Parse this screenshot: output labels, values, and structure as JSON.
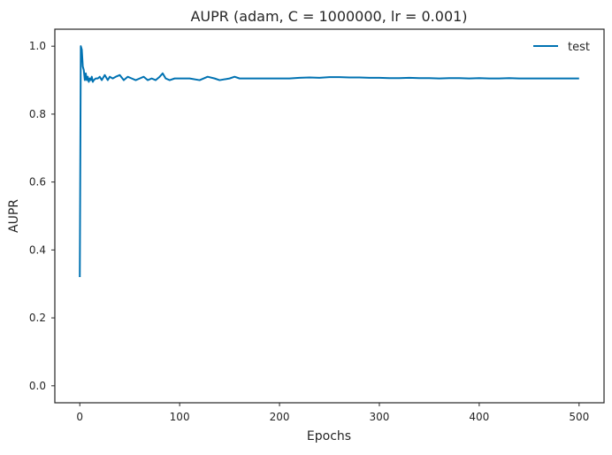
{
  "chart_data": {
    "type": "line",
    "title": "AUPR (adam, C = 1000000, lr = 0.001)",
    "xlabel": "Epochs",
    "ylabel": "AUPR",
    "xlim": [
      -25,
      525
    ],
    "ylim": [
      -0.05,
      1.05
    ],
    "xticks": [
      0,
      100,
      200,
      300,
      400,
      500
    ],
    "yticks": [
      0.0,
      0.2,
      0.4,
      0.6,
      0.8,
      1.0
    ],
    "xtick_labels": [
      "0",
      "100",
      "200",
      "300",
      "400",
      "500"
    ],
    "ytick_labels": [
      "0.0",
      "0.2",
      "0.4",
      "0.6",
      "0.8",
      "1.0"
    ],
    "grid": false,
    "legend": {
      "position": "top-right",
      "entries": [
        "test"
      ]
    },
    "series": [
      {
        "name": "test",
        "color": "#0072b2",
        "x": [
          0,
          1,
          2,
          3,
          4,
          5,
          6,
          7,
          8,
          9,
          10,
          11,
          12,
          13,
          14,
          16,
          18,
          20,
          22,
          25,
          28,
          30,
          33,
          36,
          40,
          44,
          48,
          52,
          56,
          60,
          64,
          68,
          72,
          76,
          80,
          83,
          86,
          90,
          95,
          100,
          110,
          120,
          128,
          135,
          140,
          150,
          155,
          160,
          170,
          180,
          190,
          200,
          210,
          220,
          230,
          240,
          250,
          260,
          270,
          280,
          290,
          300,
          310,
          320,
          330,
          340,
          350,
          360,
          370,
          380,
          390,
          400,
          410,
          420,
          430,
          440,
          450,
          460,
          470,
          480,
          490,
          500
        ],
        "y": [
          0.32,
          1.0,
          0.99,
          0.94,
          0.93,
          0.9,
          0.92,
          0.9,
          0.91,
          0.895,
          0.905,
          0.9,
          0.91,
          0.895,
          0.9,
          0.905,
          0.905,
          0.91,
          0.9,
          0.915,
          0.9,
          0.91,
          0.905,
          0.91,
          0.915,
          0.9,
          0.91,
          0.905,
          0.9,
          0.905,
          0.91,
          0.9,
          0.905,
          0.9,
          0.91,
          0.92,
          0.905,
          0.9,
          0.905,
          0.905,
          0.905,
          0.9,
          0.91,
          0.905,
          0.9,
          0.905,
          0.91,
          0.905,
          0.905,
          0.905,
          0.905,
          0.905,
          0.905,
          0.907,
          0.908,
          0.907,
          0.909,
          0.909,
          0.908,
          0.908,
          0.907,
          0.907,
          0.906,
          0.906,
          0.907,
          0.906,
          0.906,
          0.905,
          0.906,
          0.906,
          0.905,
          0.906,
          0.905,
          0.905,
          0.906,
          0.905,
          0.905,
          0.905,
          0.905,
          0.905,
          0.905,
          0.905
        ]
      }
    ]
  }
}
